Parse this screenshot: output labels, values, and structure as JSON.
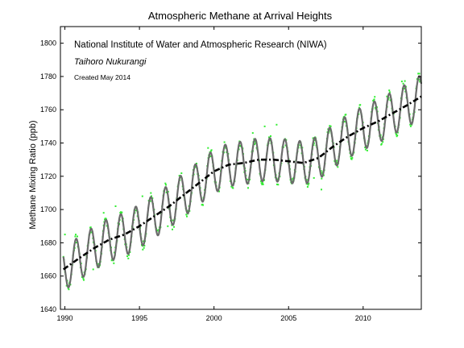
{
  "chart_data": {
    "type": "line",
    "title": "Atmospheric Methane at Arrival Heights",
    "xlabel": "",
    "ylabel": "Methane Mixing Ratio (ppb)",
    "xlim": [
      1989.7,
      2013.9
    ],
    "ylim": [
      1640,
      1810
    ],
    "x_ticks": [
      1990,
      1995,
      2000,
      2005,
      2010
    ],
    "y_ticks": [
      1640,
      1660,
      1680,
      1700,
      1720,
      1740,
      1760,
      1780,
      1800
    ],
    "grid": false,
    "annotations": [
      "National Institute of Water and Atmospheric Research (NIWA)",
      "Taihoro Nukurangi",
      "Created May 2014"
    ],
    "colors": {
      "observations": "#33ee33",
      "seasonal_fit": "#6b6b6b",
      "trend": "#000000"
    },
    "series": [
      {
        "key": "observations",
        "style": "scatter",
        "seasonal_amplitude_ppb": 13,
        "scatter_ppb": 3
      },
      {
        "key": "seasonal_fit",
        "style": "line",
        "seasonal_amplitude_ppb": 13,
        "cycles_per_year": 1
      },
      {
        "key": "trend",
        "style": "dash-dot",
        "x": [
          1989.9,
          1991,
          1992,
          1993,
          1994,
          1995,
          1996,
          1997,
          1998,
          1999,
          2000,
          2001,
          2002,
          2003,
          2004,
          2005,
          2006,
          2007,
          2008,
          2009,
          2010,
          2011,
          2012,
          2013,
          2013.9
        ],
        "values": [
          1664,
          1671,
          1677,
          1682,
          1685,
          1690,
          1696,
          1702,
          1709,
          1716,
          1723,
          1727,
          1728,
          1730,
          1730,
          1729,
          1728,
          1731,
          1738,
          1744,
          1749,
          1753,
          1758,
          1763,
          1768
        ]
      }
    ],
    "outliers": [
      {
        "x": 1990.0,
        "y": 1685
      },
      {
        "x": 1991.9,
        "y": 1664
      },
      {
        "x": 1992.6,
        "y": 1698
      },
      {
        "x": 1993.4,
        "y": 1702
      },
      {
        "x": 1995.2,
        "y": 1708
      },
      {
        "x": 1996.9,
        "y": 1690
      },
      {
        "x": 1999.6,
        "y": 1737
      },
      {
        "x": 2002.6,
        "y": 1746
      },
      {
        "x": 2003.4,
        "y": 1750
      },
      {
        "x": 2004.2,
        "y": 1751
      },
      {
        "x": 2006.7,
        "y": 1719
      },
      {
        "x": 2007.2,
        "y": 1712
      },
      {
        "x": 2011.6,
        "y": 1768
      },
      {
        "x": 2012.6,
        "y": 1777
      }
    ]
  }
}
